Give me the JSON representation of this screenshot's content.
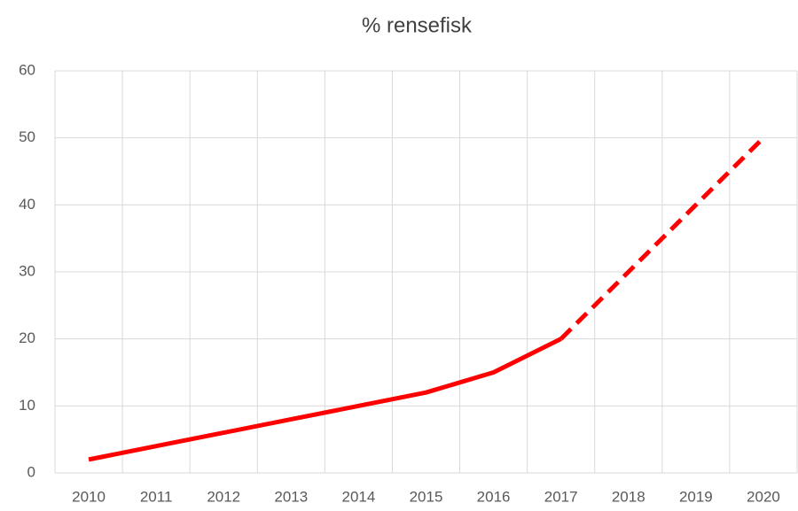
{
  "chart_data": {
    "type": "line",
    "title": "% rensefisk",
    "categories": [
      "2010",
      "2011",
      "2012",
      "2013",
      "2014",
      "2015",
      "2016",
      "2017",
      "2018",
      "2019",
      "2020"
    ],
    "series": [
      {
        "color": "#ff0000",
        "dashed": false,
        "values": [
          2,
          4,
          6,
          8,
          10,
          12,
          15,
          20,
          null,
          null,
          null
        ]
      },
      {
        "color": "#ff0000",
        "dashed": true,
        "values": [
          null,
          null,
          null,
          null,
          null,
          null,
          null,
          20,
          30,
          40,
          50
        ]
      }
    ],
    "ylim": [
      0,
      60
    ],
    "yticks": [
      0,
      10,
      20,
      30,
      40,
      50,
      60
    ],
    "grid": true
  }
}
